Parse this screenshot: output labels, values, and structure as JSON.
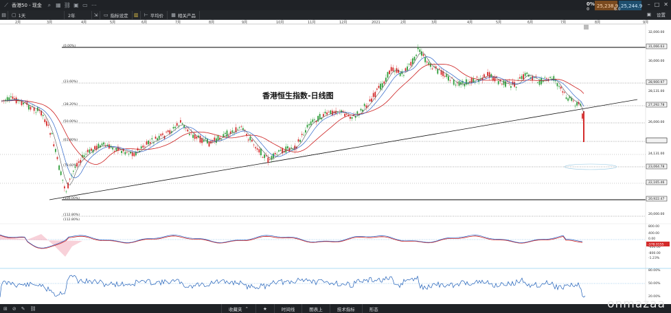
{
  "window": {
    "title": "香港50 - 现金",
    "controls": [
      "–",
      "□",
      "✕"
    ]
  },
  "quote": {
    "change_pct": "0%",
    "change_sub": "0",
    "sell": "25,238.9",
    "buy": "25,244.9",
    "spread": "6.0"
  },
  "toolbar": {
    "timeframe": "1天",
    "interval": "2年",
    "draw_label": "指标设定",
    "indicators_label": "平均价",
    "related_label": "相关产品",
    "right_label": "设置"
  },
  "chart": {
    "title": "香港恒生指数-日线图",
    "months": [
      "2月",
      "3月",
      "4月",
      "5月",
      "6月",
      "7月",
      "8月",
      "9月",
      "10月",
      "11月",
      "12月",
      "2021",
      "2月",
      "3月",
      "4月",
      "5月",
      "6月",
      "7月",
      "8月",
      "9月"
    ],
    "price_ticks": [
      "32,000.00",
      "31,066.63",
      "30,000.00",
      "28,900.97",
      "28,131.00",
      "27,292.78",
      "26,000.00",
      "24,707.27",
      "24,131.00",
      "23,064.78",
      "22,165.46",
      "20,922.47",
      "20,000.00"
    ],
    "fib_labels": [
      "(0.00%)",
      "(23.60%)",
      "(38.20%)",
      "(50.00%)",
      "(61.80%)",
      "(78.60%)",
      "(100.00%)",
      "(112.80%)"
    ],
    "current_price_label": "24,707.27",
    "macd_labels": [
      "800.00",
      "400.00",
      "0.00",
      "-400.00",
      "-800.00"
    ],
    "macd_current": "-378.0155",
    "macd_note": "-1.23%",
    "rsi_labels": [
      "80.00%",
      "50.00%",
      "20.00%"
    ]
  },
  "bottombar": {
    "tabs": [
      "收藏夹",
      "时间线",
      "图表上",
      "技术指标",
      "形态"
    ]
  },
  "watermark": "onmazaa",
  "colors": {
    "candle_up": "#2e9e3a",
    "candle_down": "#d42a2a",
    "ma_red": "#cc1d1d",
    "ma_blue": "#2c64c8",
    "ma_gray": "#555555",
    "sell_bg": "#7a4a1f",
    "buy_bg": "#1f4f6e"
  }
}
